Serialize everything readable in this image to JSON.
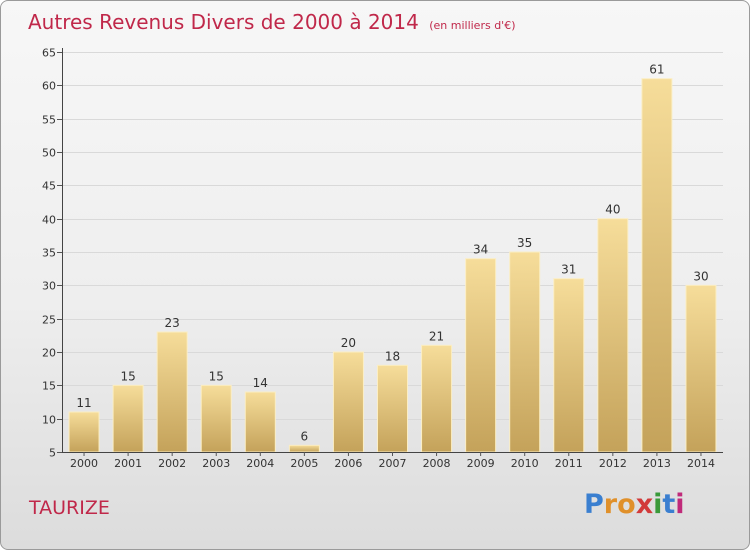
{
  "title": "Autres Revenus Divers de 2000 à 2014",
  "subtitle": "(en milliers d'€)",
  "commune": "TAURIZE",
  "logo": {
    "letters": [
      "P",
      "r",
      "o",
      "x",
      "i",
      "t",
      "i"
    ],
    "colors": [
      "#3a7fd0",
      "#e0902a",
      "#e0902a",
      "#d23a3a",
      "#3a9a3a",
      "#3a7fd0",
      "#c02a7a"
    ]
  },
  "colors": {
    "title": "#c0284a",
    "bar_light": "#f6dd9a",
    "bar_dark": "#c4a25a"
  },
  "chart_data": {
    "type": "bar",
    "categories": [
      "2000",
      "2001",
      "2002",
      "2003",
      "2004",
      "2005",
      "2006",
      "2007",
      "2008",
      "2009",
      "2010",
      "2011",
      "2012",
      "2013",
      "2014"
    ],
    "values": [
      11,
      15,
      23,
      15,
      14,
      6,
      20,
      18,
      21,
      34,
      35,
      31,
      40,
      61,
      30
    ],
    "ylim": [
      5,
      65
    ],
    "yticks": [
      5,
      10,
      15,
      20,
      25,
      30,
      35,
      40,
      45,
      50,
      55,
      60,
      65
    ],
    "grid": true,
    "legend": "none"
  }
}
